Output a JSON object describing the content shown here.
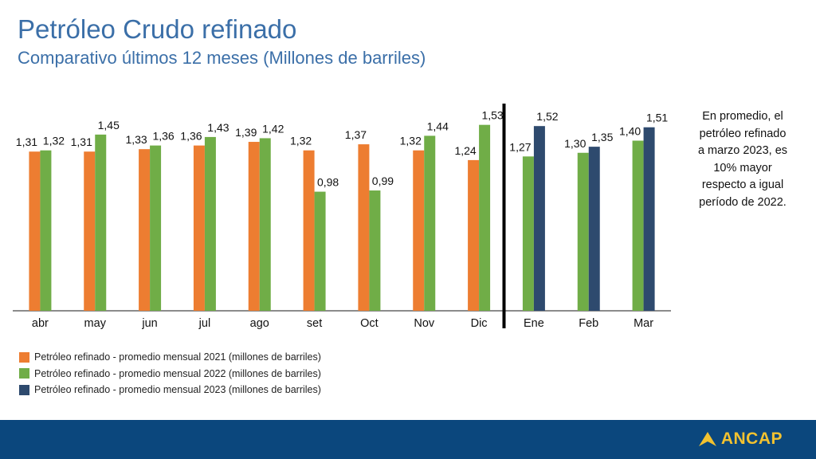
{
  "chart_data": {
    "type": "bar",
    "title": "Petróleo Crudo refinado",
    "subtitle": "Comparativo últimos 12 meses (Millones de barriles)",
    "categories": [
      "abr",
      "may",
      "jun",
      "jul",
      "ago",
      "set",
      "Oct",
      "Nov",
      "Dic",
      "Ene",
      "Feb",
      "Mar"
    ],
    "series": [
      {
        "name": "Petróleo refinado - promedio mensual 2021 (millones de barriles)",
        "color": "#ED7D31",
        "values": [
          1.31,
          1.31,
          1.33,
          1.36,
          1.39,
          1.32,
          1.37,
          1.32,
          1.24,
          null,
          null,
          null
        ]
      },
      {
        "name": "Petróleo refinado - promedio mensual 2022 (millones de barriles)",
        "color": "#70AD47",
        "values": [
          1.32,
          1.45,
          1.36,
          1.43,
          1.42,
          0.98,
          0.99,
          1.44,
          1.53,
          1.27,
          1.3,
          1.4
        ]
      },
      {
        "name": "Petróleo refinado - promedio mensual 2023 (millones de barriles)",
        "color": "#2E4A6E",
        "values": [
          null,
          null,
          null,
          null,
          null,
          null,
          null,
          null,
          null,
          1.52,
          1.35,
          1.51
        ]
      }
    ],
    "ylim": [
      0,
      1.7
    ],
    "grid": false,
    "legend": "bottom-left",
    "decimal_separator": ","
  },
  "note": [
    "En promedio, el",
    "petróleo refinado",
    "a marzo 2023, es",
    "10% mayor",
    "respecto a igual",
    "período de 2022."
  ],
  "footer": {
    "logo_text": "ANCAP",
    "color": "#0B477D",
    "logo_color": "#F2C230"
  }
}
